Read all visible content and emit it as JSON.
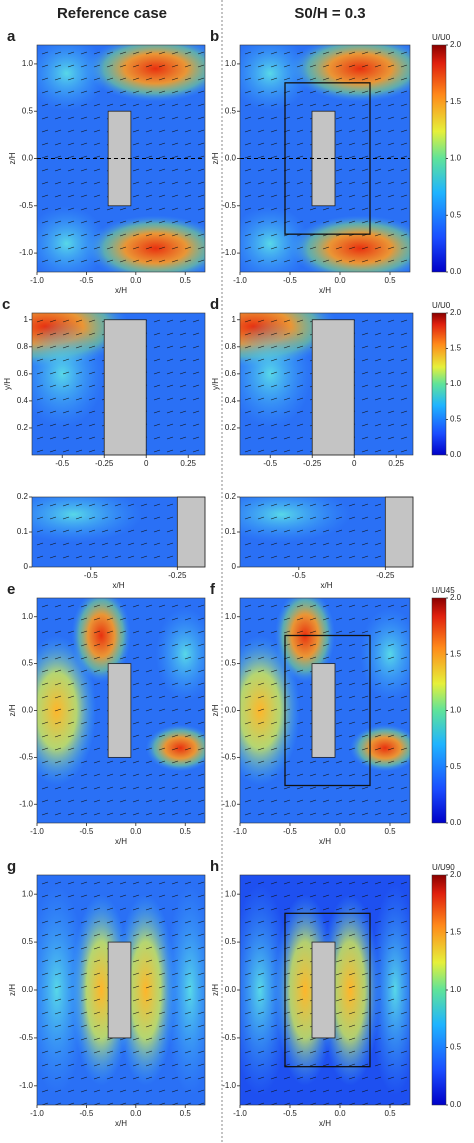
{
  "header": {
    "left": "Reference case",
    "right": "S0/H = 0.3"
  },
  "chart_data": [
    {
      "type": "contour",
      "label": "a",
      "xlabel": "x/H",
      "ylabel": "z/H",
      "xlim": [
        -1.0,
        0.7
      ],
      "ylim": [
        -1.2,
        1.2
      ],
      "xticks": [
        {
          "value": -1,
          "label": "-1.0"
        },
        -0.5,
        {
          "value": 0,
          "label": "0.0"
        },
        0.5
      ],
      "yticks": [
        {
          "value": -1,
          "label": "-1.0"
        },
        -0.5,
        {
          "value": 0,
          "label": "0.0"
        },
        0.5,
        {
          "value": 1,
          "label": "1.0"
        }
      ]
    },
    {
      "type": "contour",
      "label": "b",
      "xlabel": "x/H",
      "ylabel": "z/H",
      "xlim": [
        -1.0,
        0.7
      ],
      "ylim": [
        -1.2,
        1.2
      ],
      "xticks": [
        {
          "value": -1,
          "label": "-1.0"
        },
        -0.5,
        {
          "value": 0,
          "label": "0.0"
        },
        0.5
      ],
      "yticks": [
        {
          "value": -1,
          "label": "-1.0"
        },
        -0.5,
        {
          "value": 0,
          "label": "0.0"
        },
        0.5,
        {
          "value": 1,
          "label": "1.0"
        }
      ],
      "colorbar": {
        "label": "U/U0",
        "lim": [
          0,
          2
        ],
        "ticks": [
          {
            "value": 0,
            "label": "0.0"
          },
          0.5,
          {
            "value": 1,
            "label": "1.0"
          },
          1.5,
          {
            "value": 2,
            "label": "2.0"
          }
        ]
      }
    },
    {
      "type": "contour",
      "label": "c",
      "ylabel": "y/H",
      "xlim": [
        -0.68,
        0.35
      ],
      "ylim": [
        0,
        1.05
      ],
      "xticks": [
        -0.5,
        -0.25,
        0,
        0.25
      ],
      "yticks": [
        0.2,
        0.4,
        0.6,
        0.8,
        1
      ]
    },
    {
      "type": "contour",
      "label": "d",
      "ylabel": "y/H",
      "xlim": [
        -0.68,
        0.35
      ],
      "ylim": [
        0,
        1.05
      ],
      "xticks": [
        -0.5,
        -0.25,
        0,
        0.25
      ],
      "yticks": [
        0.2,
        0.4,
        0.6,
        0.8,
        1
      ],
      "colorbar": {
        "label": "U/U0",
        "lim": [
          0,
          2
        ],
        "ticks": [
          {
            "value": 0,
            "label": "0.0"
          },
          0.5,
          {
            "value": 1,
            "label": "1.0"
          },
          1.5,
          {
            "value": 2,
            "label": "2.0"
          }
        ]
      }
    },
    {
      "type": "contour",
      "xlabel": "x/H",
      "xlim": [
        -0.67,
        -0.17
      ],
      "ylim": [
        0,
        0.2
      ],
      "xticks": [
        -0.5,
        -0.25
      ],
      "yticks": [
        0,
        0.1,
        0.2
      ]
    },
    {
      "type": "contour",
      "xlabel": "x/H",
      "xlim": [
        -0.67,
        -0.17
      ],
      "ylim": [
        0,
        0.2
      ],
      "xticks": [
        -0.5,
        -0.25
      ],
      "yticks": [
        0,
        0.1,
        0.2
      ]
    },
    {
      "type": "contour",
      "label": "e",
      "xlabel": "x/H",
      "ylabel": "z/H",
      "xlim": [
        -1.0,
        0.7
      ],
      "ylim": [
        -1.2,
        1.2
      ],
      "xticks": [
        {
          "value": -1,
          "label": "-1.0"
        },
        -0.5,
        {
          "value": 0,
          "label": "0.0"
        },
        0.5
      ],
      "yticks": [
        {
          "value": -1,
          "label": "-1.0"
        },
        -0.5,
        {
          "value": 0,
          "label": "0.0"
        },
        0.5,
        {
          "value": 1,
          "label": "1.0"
        }
      ]
    },
    {
      "type": "contour",
      "label": "f",
      "xlabel": "x/H",
      "ylabel": "z/H",
      "xlim": [
        -1.0,
        0.7
      ],
      "ylim": [
        -1.2,
        1.2
      ],
      "xticks": [
        {
          "value": -1,
          "label": "-1.0"
        },
        -0.5,
        {
          "value": 0,
          "label": "0.0"
        },
        0.5
      ],
      "yticks": [
        {
          "value": -1,
          "label": "-1.0"
        },
        -0.5,
        {
          "value": 0,
          "label": "0.0"
        },
        0.5,
        {
          "value": 1,
          "label": "1.0"
        }
      ],
      "colorbar": {
        "label": "U/U45",
        "lim": [
          0,
          2
        ],
        "ticks": [
          {
            "value": 0,
            "label": "0.0"
          },
          0.5,
          {
            "value": 1,
            "label": "1.0"
          },
          1.5,
          {
            "value": 2,
            "label": "2.0"
          }
        ]
      }
    },
    {
      "type": "contour",
      "label": "g",
      "xlabel": "x/H",
      "ylabel": "z/H",
      "xlim": [
        -1.0,
        0.7
      ],
      "ylim": [
        -1.2,
        1.2
      ],
      "xticks": [
        {
          "value": -1,
          "label": "-1.0"
        },
        -0.5,
        {
          "value": 0,
          "label": "0.0"
        },
        0.5
      ],
      "yticks": [
        {
          "value": -1,
          "label": "-1.0"
        },
        -0.5,
        {
          "value": 0,
          "label": "0.0"
        },
        0.5,
        {
          "value": 1,
          "label": "1.0"
        }
      ]
    },
    {
      "type": "contour",
      "label": "h",
      "xlabel": "x/H",
      "ylabel": "z/H",
      "xlim": [
        -1.0,
        0.7
      ],
      "ylim": [
        -1.2,
        1.2
      ],
      "xticks": [
        {
          "value": -1,
          "label": "-1.0"
        },
        -0.5,
        {
          "value": 0,
          "label": "0.0"
        },
        0.5
      ],
      "yticks": [
        {
          "value": -1,
          "label": "-1.0"
        },
        -0.5,
        {
          "value": 0,
          "label": "0.0"
        },
        0.5,
        {
          "value": 1,
          "label": "1.0"
        }
      ],
      "colorbar": {
        "label": "U/U90",
        "lim": [
          0,
          2
        ],
        "ticks": [
          {
            "value": 0,
            "label": "0.0"
          },
          0.5,
          {
            "value": 1,
            "label": "1.0"
          },
          1.5,
          {
            "value": 2,
            "label": "2.0"
          }
        ]
      }
    }
  ]
}
